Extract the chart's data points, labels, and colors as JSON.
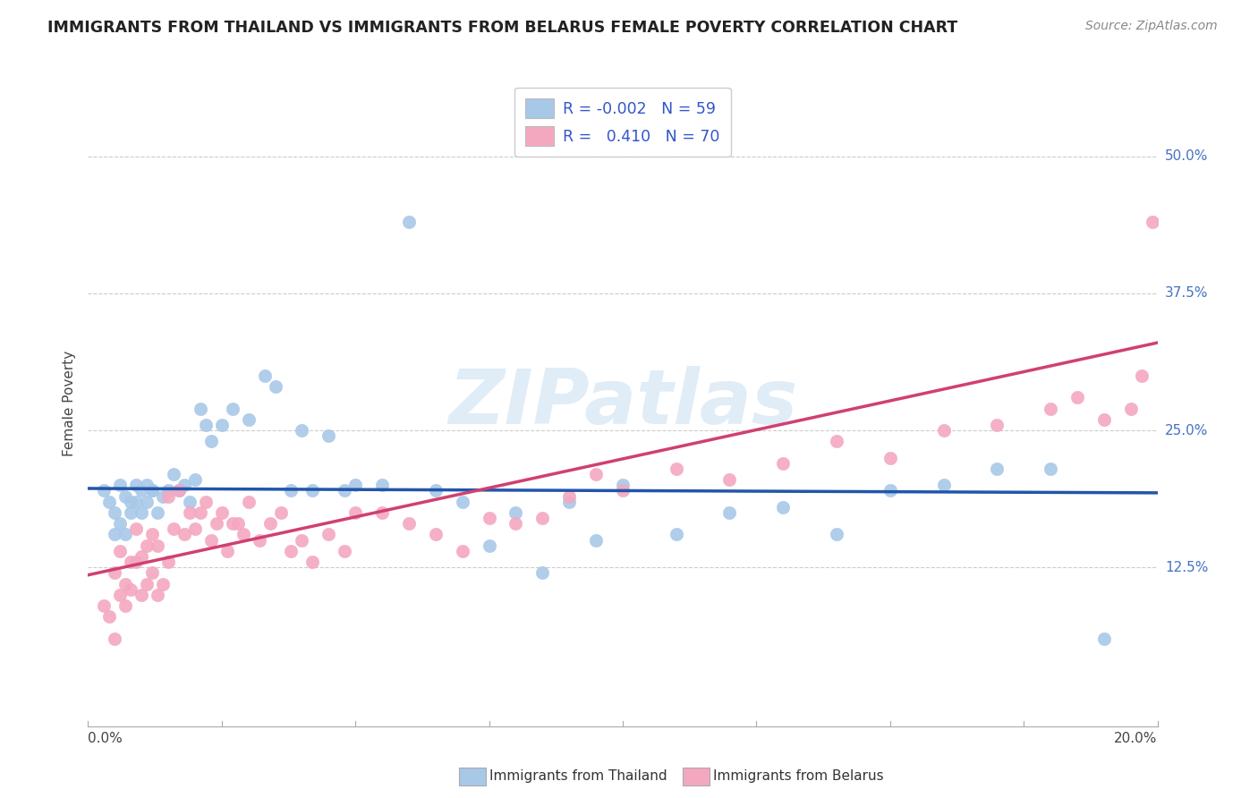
{
  "title": "IMMIGRANTS FROM THAILAND VS IMMIGRANTS FROM BELARUS FEMALE POVERTY CORRELATION CHART",
  "source": "Source: ZipAtlas.com",
  "ylabel": "Female Poverty",
  "xlim": [
    0.0,
    0.2
  ],
  "ylim": [
    -0.02,
    0.57
  ],
  "y_tick_values": [
    0.125,
    0.25,
    0.375,
    0.5
  ],
  "y_tick_labels": [
    "12.5%",
    "25.0%",
    "37.5%",
    "50.0%"
  ],
  "color_thailand": "#a8c8e8",
  "color_belarus": "#f4a8c0",
  "line_color_thailand": "#2255aa",
  "line_color_belarus": "#d04070",
  "watermark": "ZIPatlas",
  "watermark_color": "#c8ddf0",
  "thailand_x": [
    0.003,
    0.004,
    0.005,
    0.005,
    0.006,
    0.006,
    0.007,
    0.007,
    0.008,
    0.008,
    0.009,
    0.009,
    0.01,
    0.01,
    0.011,
    0.011,
    0.012,
    0.012,
    0.013,
    0.014,
    0.015,
    0.016,
    0.017,
    0.018,
    0.019,
    0.02,
    0.021,
    0.022,
    0.023,
    0.025,
    0.027,
    0.03,
    0.033,
    0.035,
    0.038,
    0.04,
    0.042,
    0.045,
    0.048,
    0.05,
    0.055,
    0.06,
    0.065,
    0.07,
    0.075,
    0.08,
    0.085,
    0.09,
    0.095,
    0.1,
    0.11,
    0.12,
    0.13,
    0.14,
    0.15,
    0.16,
    0.17,
    0.18,
    0.19
  ],
  "thailand_y": [
    0.195,
    0.185,
    0.175,
    0.155,
    0.2,
    0.165,
    0.19,
    0.155,
    0.185,
    0.175,
    0.2,
    0.185,
    0.195,
    0.175,
    0.2,
    0.185,
    0.195,
    0.195,
    0.175,
    0.19,
    0.195,
    0.21,
    0.195,
    0.2,
    0.185,
    0.205,
    0.27,
    0.255,
    0.24,
    0.255,
    0.27,
    0.26,
    0.3,
    0.29,
    0.195,
    0.25,
    0.195,
    0.245,
    0.195,
    0.2,
    0.2,
    0.44,
    0.195,
    0.185,
    0.145,
    0.175,
    0.12,
    0.185,
    0.15,
    0.2,
    0.155,
    0.175,
    0.18,
    0.155,
    0.195,
    0.2,
    0.215,
    0.215,
    0.06
  ],
  "belarus_x": [
    0.003,
    0.004,
    0.005,
    0.005,
    0.006,
    0.006,
    0.007,
    0.007,
    0.008,
    0.008,
    0.009,
    0.009,
    0.01,
    0.01,
    0.011,
    0.011,
    0.012,
    0.012,
    0.013,
    0.013,
    0.014,
    0.015,
    0.015,
    0.016,
    0.017,
    0.018,
    0.019,
    0.02,
    0.021,
    0.022,
    0.023,
    0.024,
    0.025,
    0.026,
    0.027,
    0.028,
    0.029,
    0.03,
    0.032,
    0.034,
    0.036,
    0.038,
    0.04,
    0.042,
    0.045,
    0.048,
    0.05,
    0.055,
    0.06,
    0.065,
    0.07,
    0.075,
    0.08,
    0.085,
    0.09,
    0.095,
    0.1,
    0.11,
    0.12,
    0.13,
    0.14,
    0.15,
    0.16,
    0.17,
    0.18,
    0.185,
    0.19,
    0.195,
    0.197,
    0.199
  ],
  "belarus_y": [
    0.09,
    0.08,
    0.12,
    0.06,
    0.14,
    0.1,
    0.11,
    0.09,
    0.13,
    0.105,
    0.16,
    0.13,
    0.135,
    0.1,
    0.145,
    0.11,
    0.155,
    0.12,
    0.1,
    0.145,
    0.11,
    0.19,
    0.13,
    0.16,
    0.195,
    0.155,
    0.175,
    0.16,
    0.175,
    0.185,
    0.15,
    0.165,
    0.175,
    0.14,
    0.165,
    0.165,
    0.155,
    0.185,
    0.15,
    0.165,
    0.175,
    0.14,
    0.15,
    0.13,
    0.155,
    0.14,
    0.175,
    0.175,
    0.165,
    0.155,
    0.14,
    0.17,
    0.165,
    0.17,
    0.19,
    0.21,
    0.195,
    0.215,
    0.205,
    0.22,
    0.24,
    0.225,
    0.25,
    0.255,
    0.27,
    0.28,
    0.26,
    0.27,
    0.3,
    0.44
  ],
  "thai_line_x": [
    0.0,
    0.2
  ],
  "thai_line_y": [
    0.197,
    0.193
  ],
  "bel_line_x": [
    0.0,
    0.2
  ],
  "bel_line_y": [
    0.118,
    0.33
  ]
}
